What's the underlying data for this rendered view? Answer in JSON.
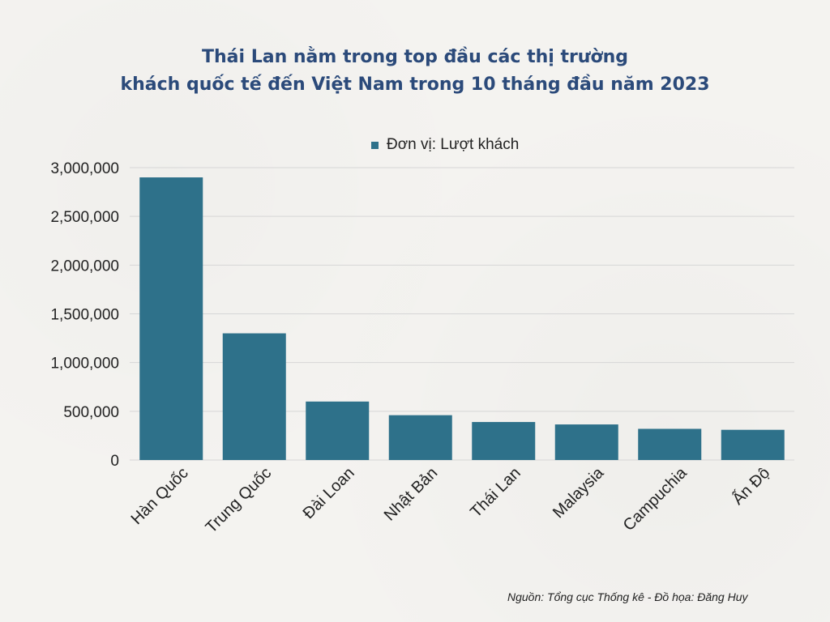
{
  "title_line1": "Thái Lan nằm trong top đầu các thị trường",
  "title_line2": "khách quốc tế đến Việt Nam trong  10 tháng đầu năm 2023",
  "legend_label": "Đơn vị: Lượt khách",
  "source": "Nguồn: Tổng cục Thống kê - Đồ họa: Đăng Huy",
  "colors": {
    "bar": "#2e718a",
    "title": "#2b4a7a",
    "grid": "#d6d6d6"
  },
  "chart_data": {
    "type": "bar",
    "categories": [
      "Hàn Quốc",
      "Trung Quốc",
      "Đài Loan",
      "Nhật Bản",
      "Thái Lan",
      "Malaysia",
      "Campuchia",
      "Ấn Độ"
    ],
    "values": [
      2900000,
      1300000,
      600000,
      460000,
      390000,
      365000,
      320000,
      310000
    ],
    "title": "Thái Lan nằm trong top đầu các thị trường khách quốc tế đến Việt Nam trong  10 tháng đầu năm 2023",
    "xlabel": "",
    "ylabel": "",
    "ylim": [
      0,
      3000000
    ],
    "yticks": [
      "0",
      "500,000",
      "1,000,000",
      "1,500,000",
      "2,000,000",
      "2,500,000",
      "3,000,000"
    ],
    "grid": true,
    "legend": "top-center"
  }
}
